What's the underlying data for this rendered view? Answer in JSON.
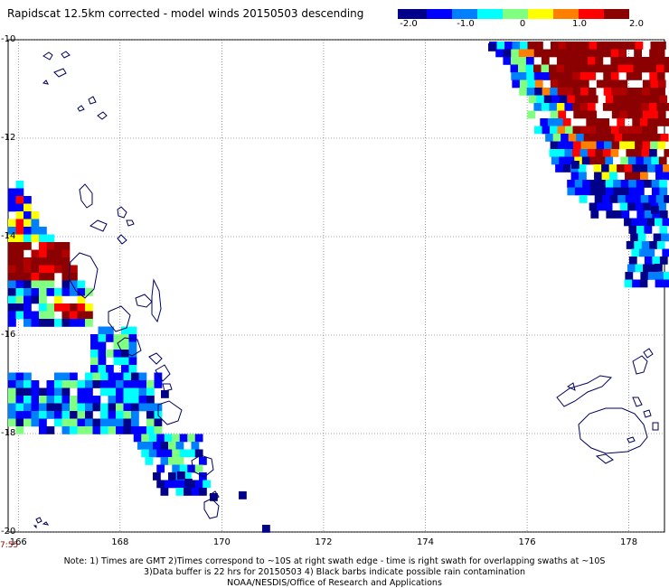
{
  "title": "Rapidscat 12.5km corrected - model winds 20150503 descending",
  "colorbar": {
    "min": -2.0,
    "max": 2.0,
    "tick_labels": [
      "-2.0",
      "-1.0",
      "0",
      "1.0",
      "2.0"
    ],
    "colors": [
      "#00008b",
      "#0000ff",
      "#0080ff",
      "#00ffff",
      "#80ff80",
      "#ffff00",
      "#ff8000",
      "#ff0000",
      "#8b0000"
    ]
  },
  "axes": {
    "lat_labels": [
      "-10",
      "-12",
      "-14",
      "-16",
      "-18",
      "-20"
    ],
    "lon_labels": [
      "166",
      "168",
      "170",
      "172",
      "174",
      "176",
      "178"
    ],
    "lon_range": [
      165.8,
      178.7
    ],
    "lat_range": [
      -20,
      -10
    ],
    "grid": true
  },
  "time_stamp": "7:55",
  "notes": {
    "line1": "Note: 1) Times are GMT 2)Times correspond to ~10S at right swath edge - time is right swath for overlapping swaths at ~10S",
    "line2": "3)Data buffer is 22 hrs for 20150503 4) Black barbs indicate possible rain contamination",
    "line3": "NOAA/NESDIS/Office of Research and Applications"
  },
  "chart_data": {
    "type": "heatmap",
    "title": "Rapidscat 12.5km corrected - model winds 20150503 descending",
    "value_range": [
      -2.0,
      2.0
    ],
    "swaths": [
      {
        "region": "northeast",
        "lon_range": [
          175.9,
          178.7
        ],
        "lat_range": [
          -13.8,
          -10.0
        ],
        "values": "mostly 2.0, with -1.0 to 0 along the southwest edge"
      },
      {
        "region": "west",
        "lon_range": [
          165.8,
          169.0
        ],
        "lat_range": [
          -19.8,
          -13.0
        ],
        "values": "2.0 near -14 to -15 lat, mostly -2.0 to -1.0 elsewhere"
      }
    ]
  }
}
